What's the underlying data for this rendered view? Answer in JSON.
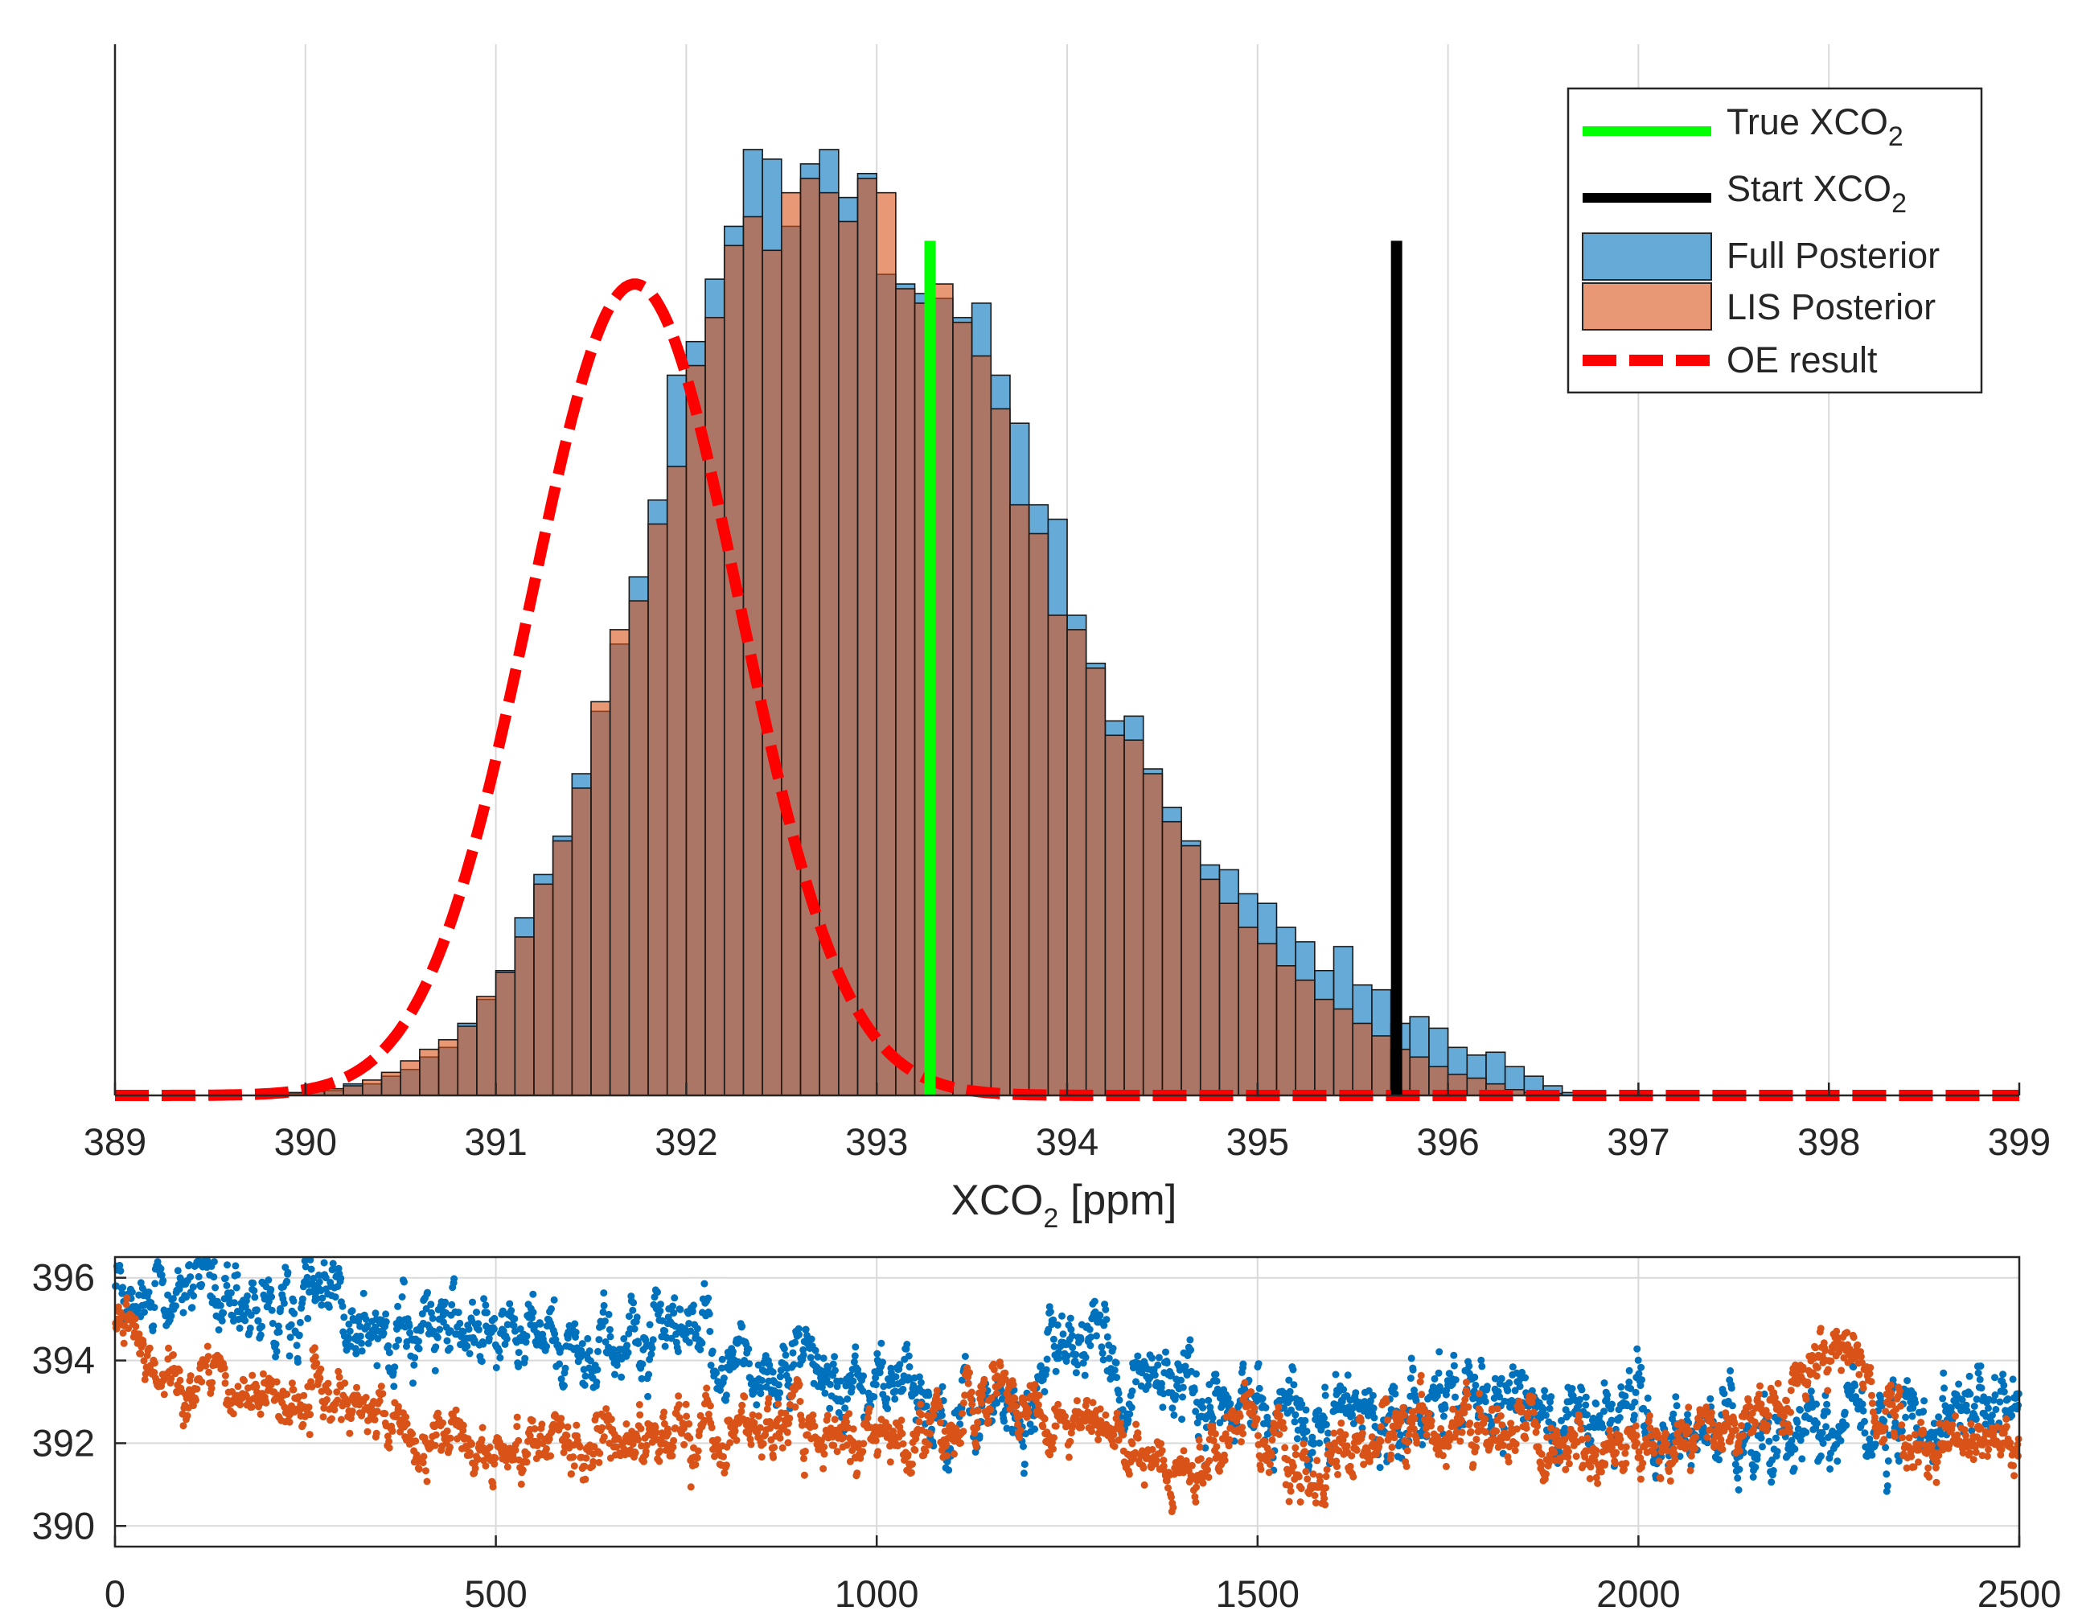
{
  "chart_data": [
    {
      "type": "histogram",
      "xlabel_main": "XCO",
      "xlabel_sub": "2",
      "xlabel_unit": " [ppm]",
      "xlim": [
        389,
        399
      ],
      "ylim": [
        0,
        1
      ],
      "x_ticks": [
        "389",
        "390",
        "391",
        "392",
        "393",
        "394",
        "395",
        "396",
        "397",
        "398",
        "399"
      ],
      "x_tick_values": [
        389,
        390,
        391,
        392,
        393,
        394,
        395,
        396,
        397,
        398,
        399
      ],
      "y_tick_labels_shown": false,
      "grid": "vertical",
      "colors": {
        "full_posterior": "#0072BD",
        "lis_posterior": "#D95319",
        "true_line": "#00FF00",
        "start_line": "#000000",
        "oe_line": "#FF0000"
      },
      "legend": {
        "position": "top-right",
        "entries": [
          {
            "label_main": "True XCO",
            "label_sub": "2",
            "style": "line",
            "color": "#00FF00"
          },
          {
            "label_main": "Start XCO",
            "label_sub": "2",
            "style": "line",
            "color": "#000000"
          },
          {
            "label_main": "Full Posterior",
            "label_sub": "",
            "style": "patch",
            "color": "#0072BD"
          },
          {
            "label_main": "LIS Posterior",
            "label_sub": "",
            "style": "patch",
            "color": "#D95319"
          },
          {
            "label_main": "OE result",
            "label_sub": "",
            "style": "dashed",
            "color": "#FF0000"
          }
        ]
      },
      "bin_start": 389.9,
      "bin_width": 0.1,
      "full_posterior": [
        0.002,
        0.004,
        0.005,
        0.012,
        0.012,
        0.02,
        0.027,
        0.04,
        0.05,
        0.075,
        0.1,
        0.13,
        0.185,
        0.23,
        0.27,
        0.335,
        0.4,
        0.47,
        0.54,
        0.62,
        0.75,
        0.785,
        0.85,
        0.905,
        0.985,
        0.975,
        0.905,
        0.97,
        0.985,
        0.935,
        0.96,
        0.855,
        0.845,
        0.835,
        0.83,
        0.81,
        0.825,
        0.75,
        0.7,
        0.615,
        0.6,
        0.5,
        0.45,
        0.39,
        0.395,
        0.34,
        0.3,
        0.265,
        0.24,
        0.235,
        0.21,
        0.2,
        0.175,
        0.16,
        0.13,
        0.155,
        0.115,
        0.11,
        0.075,
        0.082,
        0.07,
        0.05,
        0.042,
        0.045,
        0.03,
        0.02,
        0.01,
        0.003,
        0.001,
        0.0,
        0.0,
        0.0,
        0.0,
        0.0,
        0.0,
        0.0,
        0.0,
        0.0,
        0.0,
        0.0,
        0.0,
        0.0,
        0.0,
        0.0,
        0.0,
        0.0,
        0.0,
        0.0,
        0.0,
        0.0
      ],
      "lis_posterior": [
        0.003,
        0.005,
        0.007,
        0.01,
        0.016,
        0.024,
        0.036,
        0.048,
        0.058,
        0.072,
        0.103,
        0.128,
        0.165,
        0.22,
        0.265,
        0.32,
        0.41,
        0.485,
        0.515,
        0.595,
        0.655,
        0.76,
        0.81,
        0.885,
        0.915,
        0.88,
        0.94,
        0.955,
        0.94,
        0.91,
        0.955,
        0.94,
        0.84,
        0.825,
        0.845,
        0.805,
        0.77,
        0.715,
        0.615,
        0.585,
        0.5,
        0.485,
        0.445,
        0.375,
        0.37,
        0.335,
        0.285,
        0.26,
        0.225,
        0.2,
        0.175,
        0.158,
        0.135,
        0.12,
        0.1,
        0.09,
        0.075,
        0.062,
        0.048,
        0.04,
        0.03,
        0.022,
        0.018,
        0.012,
        0.006,
        0.003,
        0.002,
        0.0,
        0.0,
        0.0,
        0.0,
        0.0,
        0.0,
        0.0,
        0.0,
        0.0,
        0.0,
        0.0,
        0.0,
        0.0,
        0.0,
        0.0,
        0.0,
        0.0,
        0.0,
        0.0,
        0.0,
        0.0,
        0.0,
        0.0
      ],
      "true_xco2": 393.28,
      "start_xco2": 395.73,
      "ref_lines_height": 0.89,
      "oe_result": {
        "mean": 391.73,
        "sd": 0.55,
        "peak": 0.845
      }
    },
    {
      "type": "scatter",
      "xlim": [
        0,
        2500
      ],
      "ylim": [
        389.5,
        396.5
      ],
      "x_ticks": [
        "0",
        "500",
        "1000",
        "1500",
        "2000",
        "2500"
      ],
      "x_tick_values": [
        0,
        500,
        1000,
        1500,
        2000,
        2500
      ],
      "y_ticks": [
        "390",
        "392",
        "394",
        "396"
      ],
      "y_tick_values": [
        390,
        392,
        394,
        396
      ],
      "grid": "both",
      "n_samples": 2500,
      "series": [
        {
          "name": "Full Posterior chain",
          "color": "#0072BD",
          "trend": [
            [
              0,
              395.9
            ],
            [
              150,
              395.5
            ],
            [
              300,
              395.2
            ],
            [
              500,
              394.4
            ],
            [
              700,
              394.3
            ],
            [
              850,
              393.9
            ],
            [
              1000,
              393.3
            ],
            [
              1100,
              392.9
            ],
            [
              1200,
              392.7
            ],
            [
              1250,
              394.8
            ],
            [
              1320,
              393.5
            ],
            [
              1380,
              393.9
            ],
            [
              1450,
              392.7
            ],
            [
              1600,
              392.6
            ],
            [
              1760,
              393.6
            ],
            [
              1850,
              392.9
            ],
            [
              2000,
              392.3
            ],
            [
              2250,
              392.3
            ],
            [
              2500,
              392.9
            ]
          ],
          "spread": 0.65
        },
        {
          "name": "LIS Posterior chain",
          "color": "#D95319",
          "trend": [
            [
              0,
              394.8
            ],
            [
              80,
              393.6
            ],
            [
              300,
              392.8
            ],
            [
              500,
              391.9
            ],
            [
              700,
              392.2
            ],
            [
              900,
              392.5
            ],
            [
              1000,
              392.0
            ],
            [
              1100,
              392.4
            ],
            [
              1150,
              393.4
            ],
            [
              1300,
              392.2
            ],
            [
              1420,
              391.4
            ],
            [
              1480,
              393.0
            ],
            [
              1560,
              390.9
            ],
            [
              1700,
              392.6
            ],
            [
              1850,
              391.9
            ],
            [
              2000,
              391.8
            ],
            [
              2150,
              392.3
            ],
            [
              2260,
              394.4
            ],
            [
              2350,
              392.2
            ],
            [
              2500,
              392.0
            ]
          ],
          "spread": 0.5
        }
      ]
    }
  ]
}
